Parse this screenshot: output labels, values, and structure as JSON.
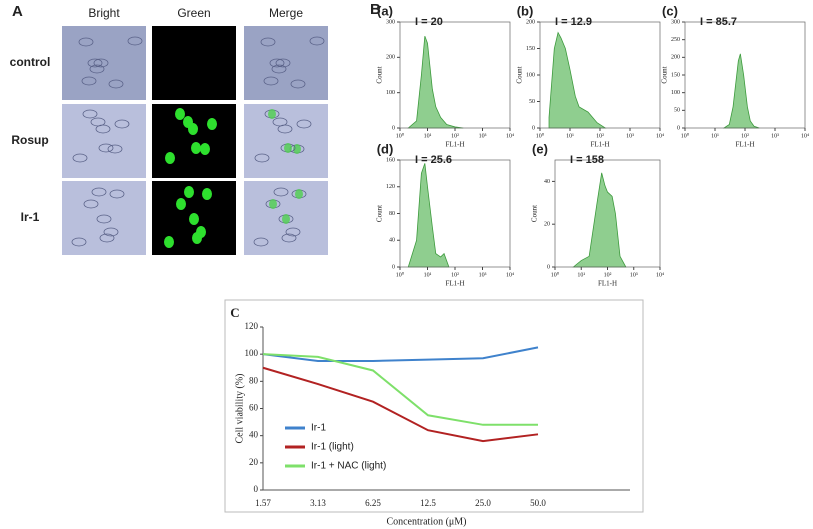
{
  "panel_a": {
    "label": "A",
    "columns": [
      "Bright",
      "Green",
      "Merge"
    ],
    "rows": [
      "control",
      "Rosup",
      "Ir-1"
    ]
  },
  "panel_b_label": "B",
  "chart_data": [
    {
      "type": "area",
      "title": "(a)",
      "annotation": "I = 20",
      "x_label": "FL1-H",
      "y_label": "Count",
      "color": "#8fce8f",
      "xscale": "log",
      "xlim": [
        1,
        10000
      ],
      "xticks": [
        {
          "value": 1,
          "label": "10⁰"
        },
        {
          "value": 10,
          "label": "10¹"
        },
        {
          "value": 100,
          "label": "10²"
        },
        {
          "value": 1000,
          "label": "10³"
        },
        {
          "value": 10000,
          "label": "10⁴"
        }
      ],
      "ylim": [
        0,
        300
      ],
      "yticks": [
        0,
        100,
        200,
        300
      ],
      "x": [
        2,
        4,
        6,
        8,
        10,
        15,
        20,
        30,
        50,
        100,
        200
      ],
      "values": [
        0,
        20,
        150,
        260,
        240,
        110,
        60,
        30,
        10,
        3,
        0
      ]
    },
    {
      "type": "area",
      "title": "(b)",
      "annotation": "I = 12.9",
      "x_label": "FL1-H",
      "y_label": "Count",
      "color": "#8fce8f",
      "xscale": "log",
      "xlim": [
        1,
        10000
      ],
      "xticks": [
        {
          "value": 1,
          "label": "10⁰"
        },
        {
          "value": 10,
          "label": "10¹"
        },
        {
          "value": 100,
          "label": "10²"
        },
        {
          "value": 1000,
          "label": "10³"
        },
        {
          "value": 10000,
          "label": "10⁴"
        }
      ],
      "ylim": [
        0,
        200
      ],
      "yticks": [
        0,
        50,
        100,
        150,
        200
      ],
      "x": [
        2,
        3,
        4,
        5,
        7,
        10,
        15,
        20,
        40,
        80,
        150
      ],
      "values": [
        20,
        150,
        180,
        170,
        150,
        110,
        60,
        40,
        30,
        10,
        0
      ]
    },
    {
      "type": "area",
      "title": "(c)",
      "annotation": "I = 85.7",
      "x_label": "FL1-H",
      "y_label": "Count",
      "color": "#8fce8f",
      "xscale": "log",
      "xlim": [
        1,
        10000
      ],
      "xticks": [
        {
          "value": 1,
          "label": "10⁰"
        },
        {
          "value": 10,
          "label": "10¹"
        },
        {
          "value": 100,
          "label": "10²"
        },
        {
          "value": 1000,
          "label": "10³"
        },
        {
          "value": 10000,
          "label": "10⁴"
        }
      ],
      "ylim": [
        0,
        300
      ],
      "yticks": [
        0,
        50,
        100,
        150,
        200,
        250,
        300
      ],
      "x": [
        20,
        30,
        40,
        60,
        70,
        90,
        120,
        150,
        200,
        300
      ],
      "values": [
        0,
        10,
        60,
        190,
        210,
        150,
        60,
        20,
        5,
        0
      ]
    },
    {
      "type": "area",
      "title": "(d)",
      "annotation": "I = 25.6",
      "x_label": "FL1-H",
      "y_label": "Count",
      "color": "#8fce8f",
      "xscale": "log",
      "xlim": [
        1,
        10000
      ],
      "xticks": [
        {
          "value": 1,
          "label": "10⁰"
        },
        {
          "value": 10,
          "label": "10¹"
        },
        {
          "value": 100,
          "label": "10²"
        },
        {
          "value": 1000,
          "label": "10³"
        },
        {
          "value": 10000,
          "label": "10⁴"
        }
      ],
      "ylim": [
        0,
        160
      ],
      "yticks": [
        0,
        40,
        80,
        120,
        160
      ],
      "x": [
        2,
        4,
        6,
        8,
        10,
        15,
        20,
        30,
        40,
        60
      ],
      "values": [
        0,
        40,
        140,
        155,
        120,
        60,
        20,
        15,
        20,
        0
      ]
    },
    {
      "type": "area",
      "title": "(e)",
      "annotation": "I = 158",
      "x_label": "FL1-H",
      "y_label": "Count",
      "color": "#8fce8f",
      "xscale": "log",
      "xlim": [
        1,
        10000
      ],
      "xticks": [
        {
          "value": 1,
          "label": "10⁰"
        },
        {
          "value": 10,
          "label": "10¹"
        },
        {
          "value": 100,
          "label": "10²"
        },
        {
          "value": 1000,
          "label": "10³"
        },
        {
          "value": 10000,
          "label": "10⁴"
        }
      ],
      "ylim": [
        0,
        50
      ],
      "yticks": [
        0,
        20,
        40
      ],
      "x": [
        5,
        10,
        20,
        40,
        60,
        80,
        100,
        150,
        200,
        300,
        500
      ],
      "values": [
        0,
        3,
        5,
        30,
        44,
        38,
        35,
        33,
        25,
        5,
        0
      ]
    },
    {
      "type": "line",
      "title": "C",
      "x_label": "Concentration (μM)",
      "y_label": "Cell viability (%)",
      "legend": "left",
      "categories": [
        "1.57",
        "3.13",
        "6.25",
        "12.5",
        "25.0",
        "50.0"
      ],
      "ylim": [
        0,
        120
      ],
      "yticks": [
        0,
        20,
        40,
        60,
        80,
        100,
        120
      ],
      "series": [
        {
          "name": "Ir-1",
          "color": "#3f82cc",
          "values": [
            100,
            95,
            95,
            96,
            97,
            105
          ]
        },
        {
          "name": "Ir-1 (light)",
          "color": "#b22222",
          "values": [
            90,
            78,
            65,
            44,
            36,
            41
          ]
        },
        {
          "name": "Ir-1 + NAC (light)",
          "color": "#7ee06a",
          "values": [
            100,
            98,
            88,
            55,
            48,
            48
          ]
        }
      ]
    }
  ]
}
